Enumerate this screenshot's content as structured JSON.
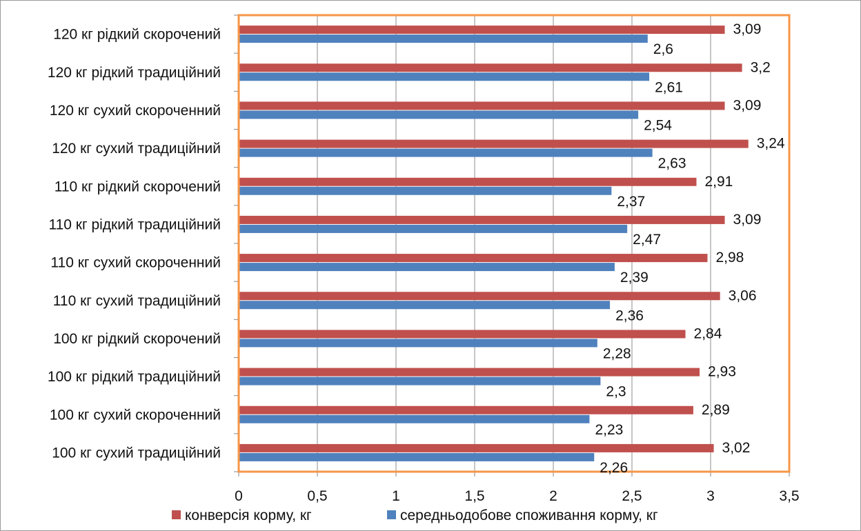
{
  "chart_data": {
    "type": "bar",
    "orientation": "horizontal",
    "categories": [
      "100 кг сухий традиційний",
      "100 кг сухий  скороченний",
      "100 кг рідкий традиційний",
      "100 кг рідкий скорочений",
      "110 кг сухий традиційний",
      "110 кг сухий  скороченний",
      "110 кг рідкий традиційний",
      "110 кг рідкий скорочений",
      "120 кг сухий традиційний",
      "120 кг сухий  скороченний",
      "120 кг рідкий традиційний",
      "120 кг рідкий скорочений"
    ],
    "series": [
      {
        "name": "конверсія корму, кг",
        "color": "#c0504d",
        "values": [
          3.02,
          2.89,
          2.93,
          2.84,
          3.06,
          2.98,
          3.09,
          2.91,
          3.24,
          3.09,
          3.2,
          3.09
        ],
        "labels": [
          "3,02",
          "2,89",
          "2,93",
          "2,84",
          "3,06",
          "2,98",
          "3,09",
          "2,91",
          "3,24",
          "3,09",
          "3,2",
          "3,09"
        ]
      },
      {
        "name": "середньодобове споживання корму, кг",
        "color": "#4f81bd",
        "values": [
          2.26,
          2.23,
          2.3,
          2.28,
          2.36,
          2.39,
          2.47,
          2.37,
          2.63,
          2.54,
          2.61,
          2.6
        ],
        "labels": [
          "2,26",
          "2,23",
          "2,3",
          "2,28",
          "2,36",
          "2,39",
          "2,47",
          "2,37",
          "2,63",
          "2,54",
          "2,61",
          "2,6"
        ]
      }
    ],
    "xlim": [
      0,
      3.5
    ],
    "xticks": [
      0,
      0.5,
      1,
      1.5,
      2,
      2.5,
      3,
      3.5
    ],
    "xtick_labels": [
      "0",
      "0,5",
      "1",
      "1,5",
      "2",
      "2,5",
      "3",
      "3,5"
    ],
    "grid": "vertical",
    "legend_position": "bottom",
    "plot_border_color": "#f79646",
    "gridline_color": "#8c8c8c",
    "axis_color": "#868686"
  }
}
